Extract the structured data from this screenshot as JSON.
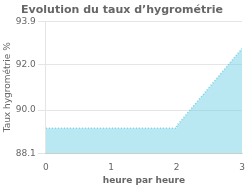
{
  "chart_data": {
    "type": "area",
    "title": "Evolution du taux d’hygrométrie",
    "x_label": "heure par heure",
    "y_label": "Taux hygrométrie %",
    "x": [
      0,
      1,
      2,
      2,
      3
    ],
    "values": [
      89.2,
      89.2,
      89.2,
      89.3,
      92.7
    ],
    "color": "#74d1e8",
    "line_style": "dotted",
    "xlim": [
      0,
      3
    ],
    "xticks": [
      0,
      1,
      2,
      3
    ],
    "ylim": [
      88.1,
      93.9
    ],
    "yticks": [
      88.1,
      {
        "value": 90.0,
        "label": "90.0"
      },
      {
        "value": 92.0,
        "label": "92.0"
      },
      93.9
    ],
    "grid": "y"
  }
}
